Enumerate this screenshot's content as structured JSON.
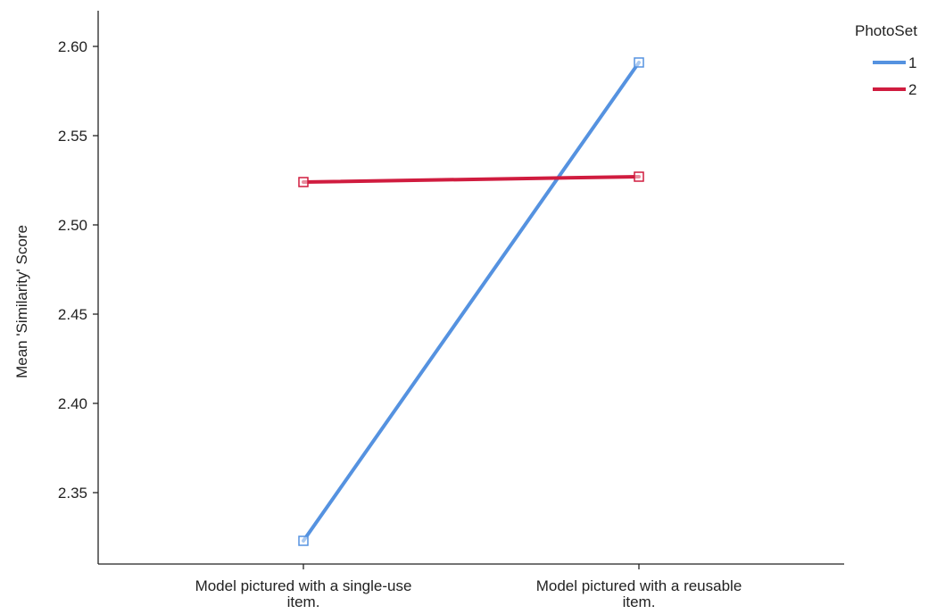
{
  "chart_data": {
    "type": "line",
    "title": "",
    "xlabel": "",
    "ylabel": "Mean 'Similarity' Score",
    "categories": [
      [
        "Model pictured with a single-use",
        "item."
      ],
      [
        "Model pictured with a reusable",
        "item."
      ]
    ],
    "ylim": [
      2.31,
      2.62
    ],
    "yticks": [
      "2.35",
      "2.40",
      "2.45",
      "2.50",
      "2.55",
      "2.60"
    ],
    "grid": false,
    "legend": {
      "title": "PhotoSet",
      "placement": "top-right"
    },
    "series": [
      {
        "name": "1",
        "color": "#5592e0",
        "values": [
          2.323,
          2.591
        ]
      },
      {
        "name": "2",
        "color": "#d01c3f",
        "values": [
          2.524,
          2.527
        ]
      }
    ]
  }
}
